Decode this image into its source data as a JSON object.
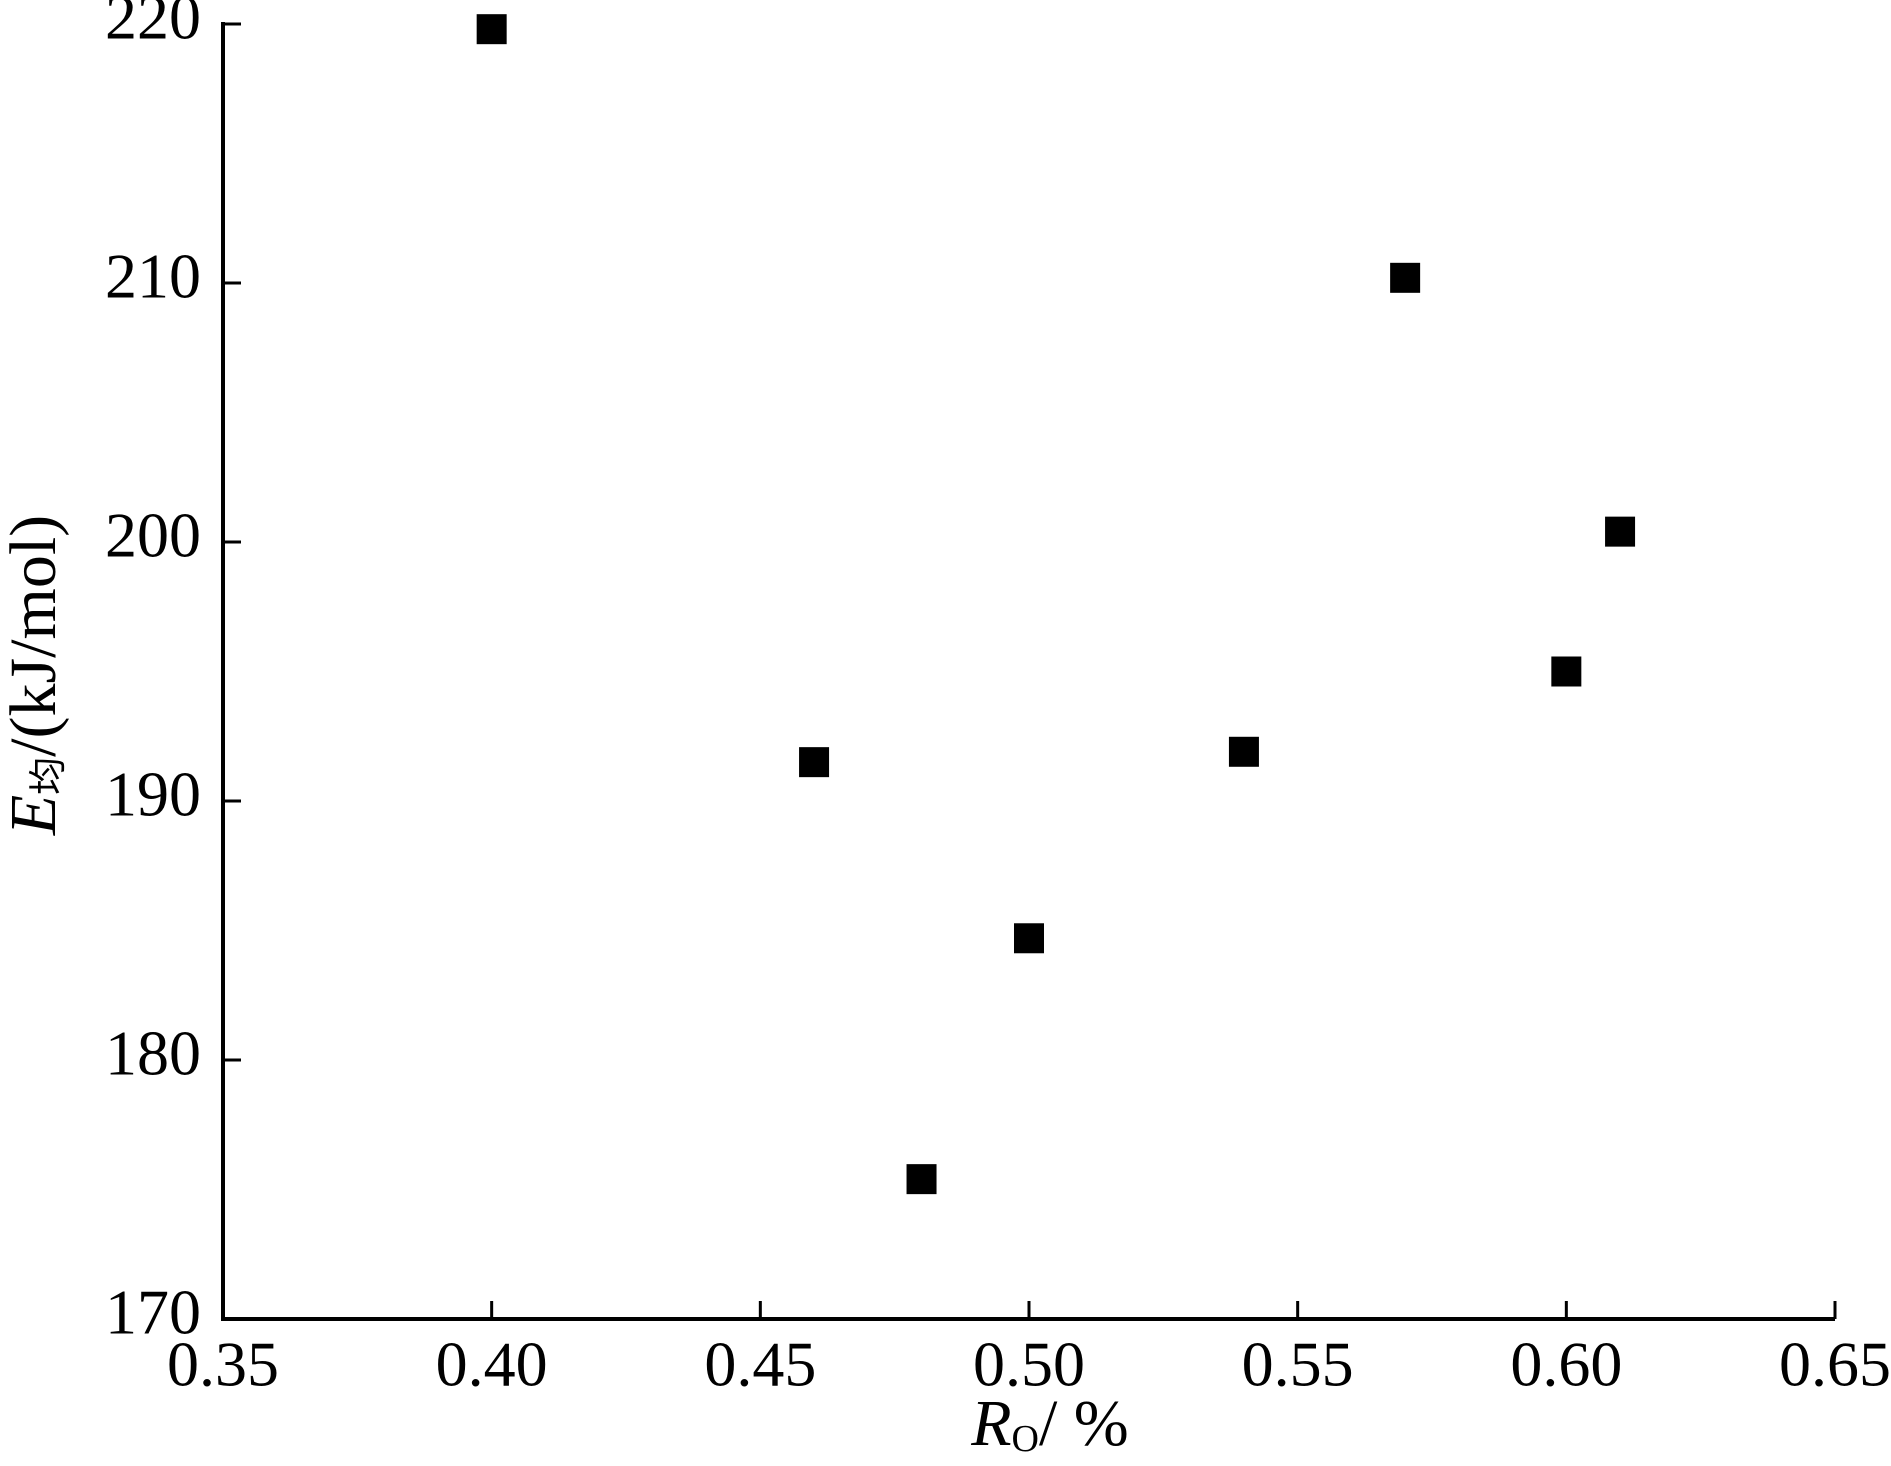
{
  "chart_data": {
    "type": "scatter",
    "x_label": {
      "main": "R",
      "sub": "O",
      "rest": "/ %"
    },
    "y_label": {
      "main": "E",
      "sub": "均",
      "rest": "/(kJ/mol)"
    },
    "x": [
      0.4,
      0.46,
      0.48,
      0.5,
      0.54,
      0.57,
      0.6,
      0.61
    ],
    "values": [
      219.8,
      191.5,
      175.4,
      184.7,
      191.9,
      210.2,
      195.0,
      200.4
    ],
    "color": "#000000",
    "xlim": [
      0.35,
      0.65
    ],
    "xticks": [
      0.35,
      {
        "value": 0.4,
        "label": "0.40"
      },
      0.45,
      {
        "value": 0.5,
        "label": "0.50"
      },
      0.55,
      {
        "value": 0.6,
        "label": "0.60"
      },
      0.65
    ],
    "ylim": [
      170,
      220
    ],
    "yticks": [
      170,
      180,
      190,
      200,
      210,
      220
    ],
    "grid": false
  }
}
